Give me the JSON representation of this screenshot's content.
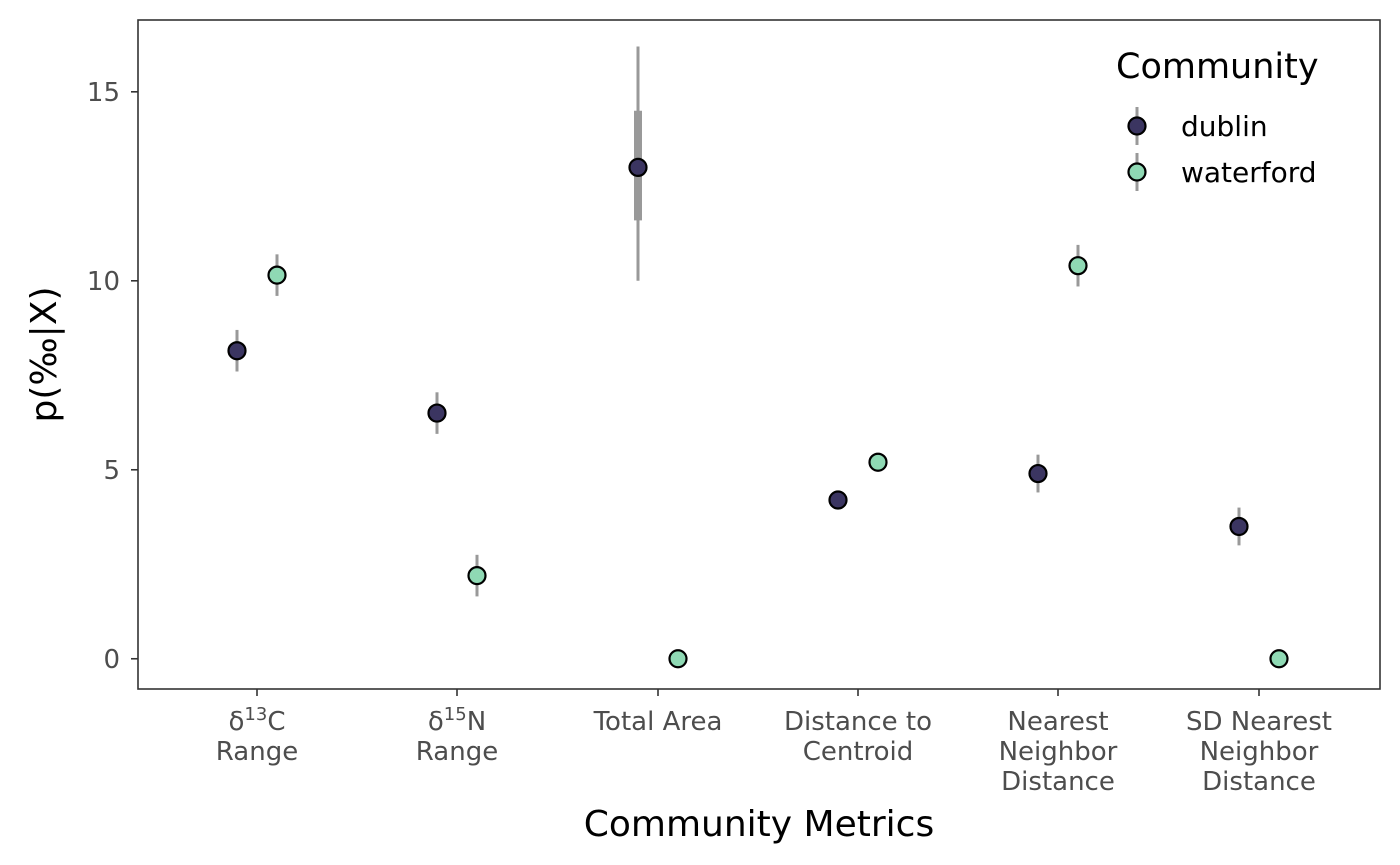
{
  "chart_data": {
    "type": "scatter",
    "xlabel": "Community Metrics",
    "ylabel": "p(‰|X)",
    "ylim": [
      -0.8,
      16.9
    ],
    "yticks": [
      0,
      5,
      10,
      15
    ],
    "grid": false,
    "categories": [
      {
        "lines": [
          {
            "pre": "δ",
            "sup": "13",
            "post": "C"
          },
          {
            "pre": "Range"
          }
        ]
      },
      {
        "lines": [
          {
            "pre": "δ",
            "sup": "15",
            "post": "N"
          },
          {
            "pre": "Range"
          }
        ]
      },
      {
        "lines": [
          {
            "pre": "Total Area"
          }
        ]
      },
      {
        "lines": [
          {
            "pre": "Distance to"
          },
          {
            "pre": "Centroid"
          }
        ]
      },
      {
        "lines": [
          {
            "pre": "Nearest"
          },
          {
            "pre": "Neighbor"
          },
          {
            "pre": "Distance"
          }
        ]
      },
      {
        "lines": [
          {
            "pre": "SD Nearest"
          },
          {
            "pre": "Neighbor"
          },
          {
            "pre": "Distance"
          }
        ]
      }
    ],
    "series": [
      {
        "name": "dublin",
        "color": "#3b3561",
        "points": [
          {
            "y": 8.15,
            "lo": 7.6,
            "hi": 8.7,
            "lo_inner": null,
            "hi_inner": null
          },
          {
            "y": 6.5,
            "lo": 5.95,
            "hi": 7.05,
            "lo_inner": null,
            "hi_inner": null
          },
          {
            "y": 13.0,
            "lo": 10.0,
            "hi": 16.2,
            "lo_inner": 11.6,
            "hi_inner": 14.5
          },
          {
            "y": 4.2,
            "lo": null,
            "hi": null,
            "lo_inner": null,
            "hi_inner": null
          },
          {
            "y": 4.9,
            "lo": 4.4,
            "hi": 5.4,
            "lo_inner": null,
            "hi_inner": null
          },
          {
            "y": 3.5,
            "lo": 3.0,
            "hi": 4.0,
            "lo_inner": null,
            "hi_inner": null
          }
        ]
      },
      {
        "name": "waterford",
        "color": "#8fd9b4",
        "points": [
          {
            "y": 10.15,
            "lo": 9.6,
            "hi": 10.7,
            "lo_inner": null,
            "hi_inner": null
          },
          {
            "y": 2.2,
            "lo": 1.65,
            "hi": 2.75,
            "lo_inner": null,
            "hi_inner": null
          },
          {
            "y": 0.0,
            "lo": null,
            "hi": null,
            "lo_inner": null,
            "hi_inner": null
          },
          {
            "y": 5.2,
            "lo": null,
            "hi": null,
            "lo_inner": null,
            "hi_inner": null
          },
          {
            "y": 10.4,
            "lo": 9.85,
            "hi": 10.95,
            "lo_inner": null,
            "hi_inner": null
          },
          {
            "y": 0.0,
            "lo": null,
            "hi": null,
            "lo_inner": null,
            "hi_inner": null
          }
        ]
      }
    ],
    "errorbar_color": "#999999",
    "legend": {
      "title": "Community",
      "position": "top-right"
    }
  }
}
